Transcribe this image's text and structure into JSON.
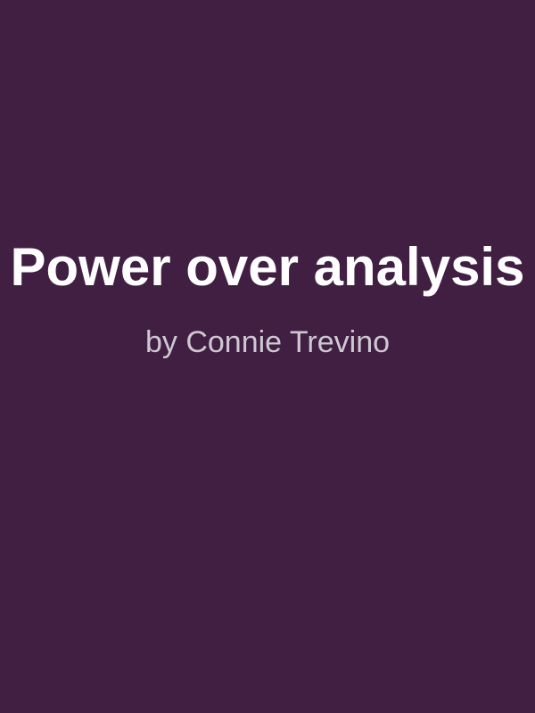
{
  "cover": {
    "title": "Power over analysis",
    "author": "by Connie Trevino",
    "colors": {
      "background": "#401f42",
      "title": "#ffffff",
      "author": "#cfc8d3"
    }
  }
}
